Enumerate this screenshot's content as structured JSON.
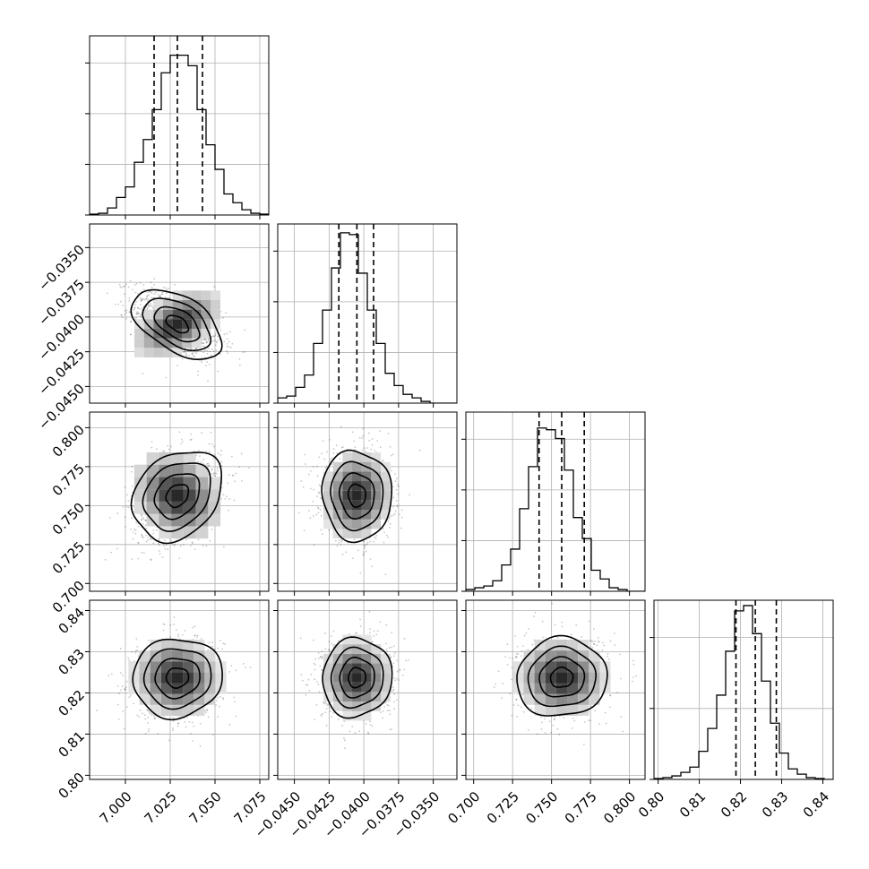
{
  "chart_data": {
    "type": "corner",
    "grid": true,
    "params": [
      {
        "range": [
          6.98,
          7.08
        ],
        "ticks": [
          7.0,
          7.025,
          7.05,
          7.075
        ],
        "tick_labels": [
          "7.000",
          "7.025",
          "7.050",
          "7.075"
        ],
        "hist_ticks": [
          0,
          2,
          4,
          6
        ],
        "quantiles": [
          7.016,
          7.029,
          7.043
        ],
        "mean": 7.029,
        "sd": 0.0125,
        "hist_bins": [
          0.005,
          0.01,
          0.04,
          0.1,
          0.16,
          0.3,
          0.43,
          0.6,
          0.81,
          0.91,
          0.91,
          0.85,
          0.6,
          0.4,
          0.26,
          0.12,
          0.07,
          0.03,
          0.01,
          0.005
        ]
      },
      {
        "range": [
          -0.0462,
          -0.0333
        ],
        "ticks": [
          -0.045,
          -0.0425,
          -0.04,
          -0.0375,
          -0.035
        ],
        "tick_labels": [
          "−0.0450",
          "−0.0425",
          "−0.0400",
          "−0.0375",
          "−0.0350"
        ],
        "hist_ticks": [
          0,
          2,
          4,
          6
        ],
        "quantiles": [
          -0.0418,
          -0.0405,
          -0.0393
        ],
        "mean": -0.0405,
        "sd": 0.00125,
        "hist_bins": [
          0.03,
          0.04,
          0.09,
          0.16,
          0.34,
          0.53,
          0.77,
          0.97,
          0.96,
          0.74,
          0.53,
          0.34,
          0.17,
          0.1,
          0.05,
          0.03,
          0.01,
          0,
          0,
          0
        ]
      },
      {
        "range": [
          0.695,
          0.81
        ],
        "ticks": [
          0.7,
          0.725,
          0.75,
          0.775,
          0.8
        ],
        "tick_labels": [
          "0.700",
          "0.725",
          "0.750",
          "0.775",
          "0.800"
        ],
        "hist_ticks": [
          0,
          2,
          4,
          6
        ],
        "quantiles": [
          0.742,
          0.7565,
          0.771
        ],
        "mean": 0.7565,
        "sd": 0.0145,
        "hist_bins": [
          0.01,
          0.02,
          0.03,
          0.06,
          0.15,
          0.24,
          0.47,
          0.71,
          0.93,
          0.92,
          0.87,
          0.69,
          0.42,
          0.3,
          0.12,
          0.07,
          0.02,
          0.01,
          0,
          0
        ]
      },
      {
        "range": [
          0.799,
          0.8425
        ],
        "ticks": [
          0.8,
          0.81,
          0.82,
          0.83,
          0.84
        ],
        "tick_labels": [
          "0.80",
          "0.81",
          "0.82",
          "0.83",
          "0.84"
        ],
        "hist_ticks": [
          0,
          2,
          4
        ],
        "quantiles": [
          0.8189,
          0.8236,
          0.8287
        ],
        "mean": 0.8237,
        "sd": 0.0048,
        "hist_bins": [
          0.005,
          0.01,
          0.02,
          0.04,
          0.07,
          0.16,
          0.29,
          0.48,
          0.73,
          0.96,
          0.99,
          0.83,
          0.56,
          0.32,
          0.15,
          0.06,
          0.03,
          0.01,
          0.005,
          0
        ]
      }
    ],
    "correlations": [
      [
        1,
        -0.5,
        0.25,
        0.05
      ],
      [
        -0.5,
        1,
        -0.05,
        0.05
      ],
      [
        0.25,
        -0.05,
        1,
        0.05
      ],
      [
        0.05,
        0.05,
        0.05,
        1
      ]
    ],
    "contour_levels_sigma": [
      0.5,
      1.0,
      1.5,
      2.0
    ]
  }
}
